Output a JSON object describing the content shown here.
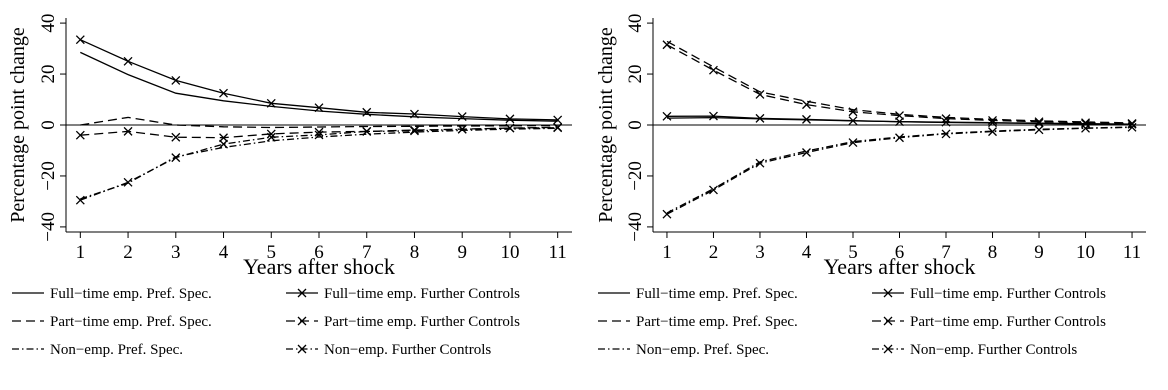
{
  "chart_data": [
    {
      "type": "line",
      "title": "",
      "xlabel": "Years after shock",
      "ylabel": "Percentage point change",
      "x": [
        1,
        2,
        3,
        4,
        5,
        6,
        7,
        8,
        9,
        10,
        11
      ],
      "xticks": [
        1,
        2,
        3,
        4,
        5,
        6,
        7,
        8,
        9,
        10,
        11
      ],
      "yticks": [
        -40,
        -20,
        0,
        20,
        40
      ],
      "xlim": [
        0.7,
        11.3
      ],
      "ylim": [
        -42,
        42
      ],
      "reference_line": 0,
      "legend_position": "bottom",
      "series": [
        {
          "name": "Full−time emp. Pref. Spec.",
          "style": "solid",
          "marker": false,
          "values": [
            28.5,
            19.8,
            12.5,
            9.5,
            7.3,
            5.5,
            4.2,
            3.2,
            2.5,
            1.9,
            1.5
          ]
        },
        {
          "name": "Full−time emp. Further Controls",
          "style": "solid",
          "marker": true,
          "values": [
            33.5,
            25.0,
            17.5,
            12.5,
            8.5,
            6.8,
            5.0,
            4.3,
            3.3,
            2.4,
            2.0
          ]
        },
        {
          "name": "Part−time emp. Pref. Spec.",
          "style": "dash",
          "marker": false,
          "values": [
            0.0,
            3.0,
            0.0,
            -0.7,
            -1.0,
            -0.8,
            -0.6,
            -0.5,
            -0.4,
            -0.3,
            -0.2
          ]
        },
        {
          "name": "Part−time emp. Further Controls",
          "style": "dash",
          "marker": true,
          "values": [
            -4.0,
            -2.5,
            -4.8,
            -5.0,
            -3.5,
            -2.8,
            -2.5,
            -2.0,
            -1.6,
            -1.2,
            -0.9
          ]
        },
        {
          "name": "Non−emp. Pref. Spec.",
          "style": "dashdot",
          "marker": false,
          "values": [
            -29.0,
            -22.8,
            -12.5,
            -8.8,
            -6.2,
            -4.7,
            -3.6,
            -2.8,
            -2.1,
            -1.6,
            -1.3
          ]
        },
        {
          "name": "Non−emp. Further Controls",
          "style": "dashdot",
          "marker": true,
          "values": [
            -29.5,
            -22.5,
            -12.8,
            -7.5,
            -4.8,
            -3.9,
            -2.5,
            -2.3,
            -1.7,
            -1.2,
            -1.1
          ]
        }
      ]
    },
    {
      "type": "line",
      "title": "",
      "xlabel": "Years after shock",
      "ylabel": "Percentage point change",
      "x": [
        1,
        2,
        3,
        4,
        5,
        6,
        7,
        8,
        9,
        10,
        11
      ],
      "xticks": [
        1,
        2,
        3,
        4,
        5,
        6,
        7,
        8,
        9,
        10,
        11
      ],
      "yticks": [
        -40,
        -20,
        0,
        20,
        40
      ],
      "xlim": [
        0.7,
        11.3
      ],
      "ylim": [
        -42,
        42
      ],
      "reference_line": 0,
      "legend_position": "bottom",
      "series": [
        {
          "name": "Full−time emp. Pref. Spec.",
          "style": "solid",
          "marker": false,
          "values": [
            2.7,
            2.9,
            2.4,
            2.0,
            1.6,
            1.3,
            1.0,
            0.8,
            0.6,
            0.4,
            0.3
          ]
        },
        {
          "name": "Full−time emp. Further Controls",
          "style": "solid",
          "marker": true,
          "values": [
            3.4,
            3.5,
            2.6,
            2.2,
            1.7,
            1.3,
            1.1,
            0.9,
            0.7,
            0.5,
            0.3
          ]
        },
        {
          "name": "Part−time emp. Pref. Spec.",
          "style": "dash",
          "marker": false,
          "values": [
            32.8,
            22.8,
            13.0,
            9.3,
            6.0,
            4.2,
            3.0,
            2.2,
            1.6,
            1.2,
            0.8
          ]
        },
        {
          "name": "Part−time emp. Further Controls",
          "style": "dash",
          "marker": true,
          "values": [
            31.5,
            21.5,
            12.0,
            8.0,
            5.2,
            3.7,
            2.5,
            1.8,
            1.3,
            0.9,
            0.6
          ]
        },
        {
          "name": "Non−emp. Pref. Spec.",
          "style": "dashdot",
          "marker": false,
          "values": [
            -34.5,
            -25.0,
            -14.5,
            -10.2,
            -6.5,
            -4.7,
            -3.3,
            -2.4,
            -1.7,
            -1.2,
            -0.8
          ]
        },
        {
          "name": "Non−emp. Further Controls",
          "style": "dashdot",
          "marker": true,
          "values": [
            -35.0,
            -25.5,
            -15.0,
            -10.8,
            -6.9,
            -5.0,
            -3.5,
            -2.6,
            -1.9,
            -1.3,
            -0.9
          ]
        }
      ]
    }
  ]
}
